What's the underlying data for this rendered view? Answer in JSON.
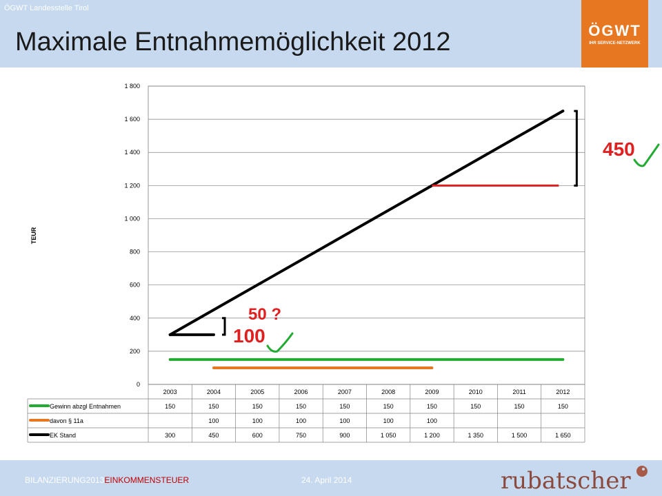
{
  "header": {
    "org": "ÖGWT Landesstelle Tirol",
    "title": "Maximale Entnahmemöglichkeit 2012",
    "logo_main": "ÖGWT",
    "logo_sub": "IHR SERVICE-NETZWERK"
  },
  "chart_data": {
    "type": "line",
    "ylabel": "TEUR",
    "ylim": [
      0,
      1800
    ],
    "yticks": [
      "0",
      "200",
      "400",
      "600",
      "800",
      "1 000",
      "1 200",
      "1 400",
      "1 600",
      "1 800"
    ],
    "categories": [
      "2003",
      "2004",
      "2005",
      "2006",
      "2007",
      "2008",
      "2009",
      "2010",
      "2011",
      "2012"
    ],
    "series": [
      {
        "name": "Gewinn abzgl Entnahmen",
        "color": "#22aa33",
        "values": [
          150,
          150,
          150,
          150,
          150,
          150,
          150,
          150,
          150,
          150
        ],
        "labels": [
          "150",
          "150",
          "150",
          "150",
          "150",
          "150",
          "150",
          "150",
          "150",
          "150"
        ]
      },
      {
        "name": "davon § 11a",
        "color": "#e87722",
        "values": [
          null,
          100,
          100,
          100,
          100,
          100,
          100,
          null,
          null,
          null
        ],
        "labels": [
          "",
          "100",
          "100",
          "100",
          "100",
          "100",
          "100",
          "",
          "",
          ""
        ]
      },
      {
        "name": "EK Stand",
        "color": "#000000",
        "values": [
          300,
          450,
          600,
          750,
          900,
          1050,
          1200,
          1350,
          1500,
          1650
        ],
        "labels": [
          "300",
          "450",
          "600",
          "750",
          "900",
          "1 050",
          "1 200",
          "1 350",
          "1 500",
          "1 650"
        ]
      }
    ],
    "annotations": {
      "a450": "450",
      "a50": "50 ?",
      "a100": "100"
    }
  },
  "footer": {
    "left_prefix": "BILANZIERUNG2013",
    "left_highlight": "EINKOMMENSTEUER",
    "date": "24. April 2014",
    "brand": "rubatscher"
  }
}
